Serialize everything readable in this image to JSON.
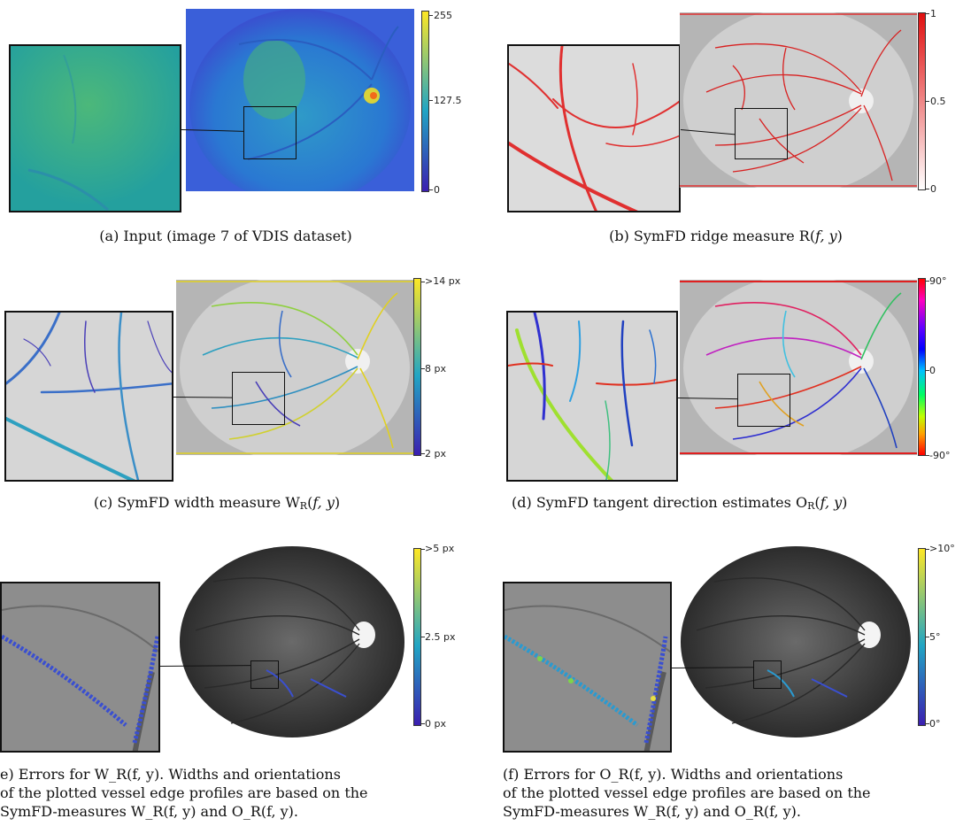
{
  "panels": {
    "a": {
      "colorbar": {
        "top": "255",
        "mid": "127.5",
        "bottom": "0"
      },
      "caption": "(a) Input (image 7 of VDIS dataset)"
    },
    "b": {
      "colorbar": {
        "top": "1",
        "mid": "0.5",
        "bottom": "0"
      },
      "caption_prefix": "(b) SymFD ridge measure R(",
      "caption_args": "f, y",
      "caption_suffix": ")"
    },
    "c": {
      "colorbar": {
        "top": ">14 px",
        "mid": "8 px",
        "bottom": "2 px"
      },
      "caption_prefix": "(c) SymFD width measure W",
      "caption_sub": "R",
      "caption_mid": "(",
      "caption_args": "f, y",
      "caption_suffix": ")"
    },
    "d": {
      "colorbar": {
        "top": "90°",
        "mid": "0",
        "bottom": "-90°"
      },
      "caption_prefix": "(d) SymFD tangent direction estimates O",
      "caption_sub": "R",
      "caption_mid": "(",
      "caption_args": "f, y",
      "caption_suffix": ")"
    },
    "e": {
      "colorbar": {
        "top": ">5 px",
        "mid": "2.5 px",
        "bottom": "0 px"
      },
      "caption_line1": "e) Errors for W_R(f, y).  Widths and orientations",
      "caption_line2": "of the plotted vessel edge profiles are based on the",
      "caption_line3": "SymFD-measures W_R(f, y) and O_R(f, y)."
    },
    "f": {
      "colorbar": {
        "top": ">10°",
        "mid": "5°",
        "bottom": "0°"
      },
      "caption_line1": "(f) Errors for O_R(f, y).  Widths and orientations",
      "caption_line2": "of the plotted vessel edge profiles are based on the",
      "caption_line3": "SymFD-measures W_R(f, y) and O_R(f, y)."
    }
  },
  "colors": {
    "viridis_top": "#fde725",
    "viridis_mid": "#21a5c4",
    "viridis_bottom": "#3b1fb0",
    "ridge_red": "#e01010",
    "retina_gray": "#c9c9c9",
    "dark_fundus": "#3a3a3a"
  }
}
